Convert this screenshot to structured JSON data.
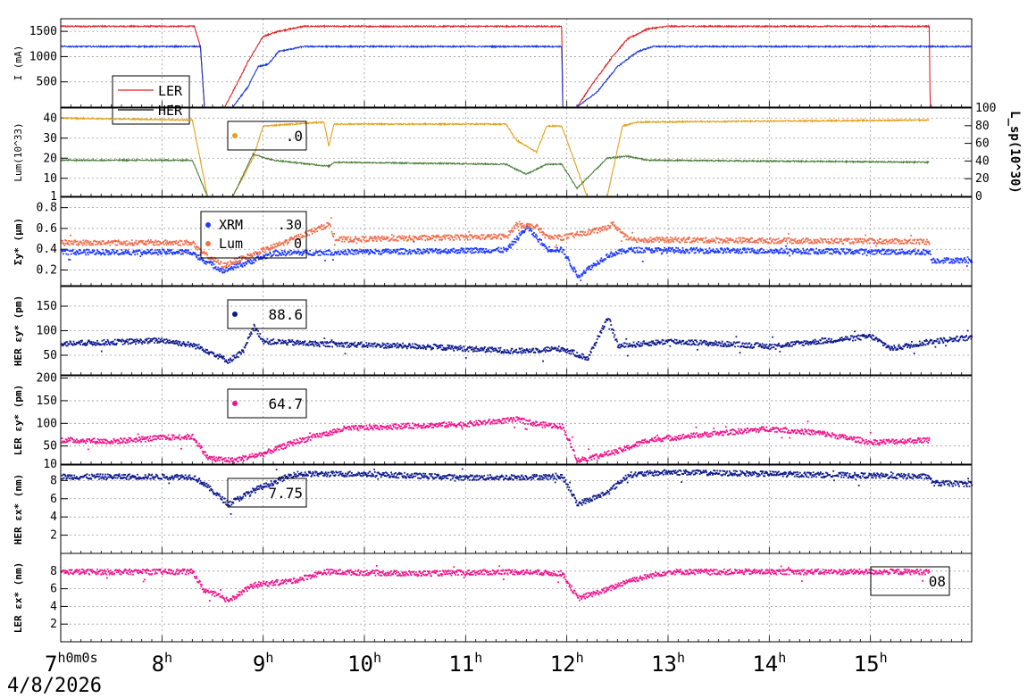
{
  "chart_data": {
    "type": "multi-panel time series",
    "date_label": "4/8/2026",
    "x_range_hours": [
      7.0,
      16.0
    ],
    "time_ticks": [
      {
        "hour": 7,
        "label": "7",
        "suffix": "h0m0s"
      },
      {
        "hour": 8,
        "label": "8",
        "suffix": "h"
      },
      {
        "hour": 9,
        "label": "9",
        "suffix": "h"
      },
      {
        "hour": 10,
        "label": "10",
        "suffix": "h"
      },
      {
        "hour": 11,
        "label": "11",
        "suffix": "h"
      },
      {
        "hour": 12,
        "label": "12",
        "suffix": "h"
      },
      {
        "hour": 13,
        "label": "13",
        "suffix": "h"
      },
      {
        "hour": 14,
        "label": "14",
        "suffix": "h"
      },
      {
        "hour": 15,
        "label": "15",
        "suffix": "h"
      }
    ],
    "colors": {
      "ler_current": "#dd2222",
      "her_current": "#1a36d8",
      "lum_gold": "#e3a21a",
      "lum_green": "#4c7e3a",
      "xrm_blue": "#1f3bff",
      "lum_salmon": "#f0704f",
      "navy": "#0e1a8c",
      "pink": "#f0168e"
    },
    "panels": [
      {
        "id": "current",
        "ylabel": "I (mA)",
        "ylim": [
          0,
          1750
        ],
        "yticks": [
          500,
          1000,
          1500
        ],
        "legend": [
          "LER",
          "HER"
        ],
        "series": [
          {
            "name": "LER",
            "style": "line",
            "color_key": "ler_current",
            "points": [
              [
                7.0,
                1600
              ],
              [
                8.32,
                1600
              ],
              [
                8.38,
                1200
              ],
              [
                8.42,
                0
              ],
              [
                8.62,
                0
              ],
              [
                8.75,
                500
              ],
              [
                8.85,
                900
              ],
              [
                9.0,
                1400
              ],
              [
                9.15,
                1500
              ],
              [
                9.4,
                1600
              ],
              [
                11.95,
                1600
              ],
              [
                11.96,
                0
              ],
              [
                12.1,
                0
              ],
              [
                12.25,
                450
              ],
              [
                12.45,
                1000
              ],
              [
                12.6,
                1350
              ],
              [
                12.8,
                1550
              ],
              [
                13.0,
                1600
              ],
              [
                15.58,
                1600
              ],
              [
                15.59,
                0
              ],
              [
                16.0,
                0
              ]
            ]
          },
          {
            "name": "HER",
            "style": "line",
            "color_key": "her_current",
            "points": [
              [
                7.0,
                1200
              ],
              [
                8.38,
                1200
              ],
              [
                8.42,
                0
              ],
              [
                8.7,
                0
              ],
              [
                8.85,
                400
              ],
              [
                8.95,
                800
              ],
              [
                9.05,
                850
              ],
              [
                9.15,
                1100
              ],
              [
                9.4,
                1200
              ],
              [
                11.95,
                1200
              ],
              [
                11.96,
                0
              ],
              [
                12.1,
                0
              ],
              [
                12.3,
                300
              ],
              [
                12.5,
                800
              ],
              [
                12.7,
                1100
              ],
              [
                12.85,
                1200
              ],
              [
                16.0,
                1200
              ]
            ]
          }
        ]
      },
      {
        "id": "luminosity",
        "ylabel": "Lum(10^33)",
        "ylim": [
          1,
          45
        ],
        "yticks": [
          1,
          10,
          20,
          30,
          40
        ],
        "right_axis": {
          "label": "L_sp(10^30)",
          "ylim": [
            0,
            100
          ],
          "ticks": [
            0,
            20,
            40,
            60,
            80,
            100
          ]
        },
        "legend_value": ".0",
        "series": [
          {
            "name": "gold",
            "style": "line",
            "color_key": "lum_gold",
            "points": [
              [
                7.0,
                40
              ],
              [
                8.3,
                39
              ],
              [
                8.45,
                1
              ],
              [
                8.7,
                1
              ],
              [
                8.9,
                20
              ],
              [
                9.0,
                36
              ],
              [
                9.3,
                37
              ],
              [
                9.6,
                38
              ],
              [
                9.65,
                26
              ],
              [
                9.7,
                37
              ],
              [
                11.4,
                37
              ],
              [
                11.5,
                29
              ],
              [
                11.7,
                23
              ],
              [
                11.8,
                36
              ],
              [
                11.95,
                36
              ],
              [
                12.2,
                1
              ],
              [
                12.4,
                1
              ],
              [
                12.55,
                36
              ],
              [
                12.7,
                38
              ],
              [
                15.58,
                39
              ]
            ]
          },
          {
            "name": "green",
            "style": "line",
            "color_key": "lum_green",
            "points": [
              [
                7.0,
                19
              ],
              [
                8.3,
                19
              ],
              [
                8.45,
                1
              ],
              [
                8.7,
                1
              ],
              [
                8.9,
                22
              ],
              [
                9.1,
                19
              ],
              [
                9.65,
                16
              ],
              [
                9.7,
                18
              ],
              [
                11.4,
                17
              ],
              [
                11.6,
                12
              ],
              [
                11.8,
                17
              ],
              [
                11.95,
                17
              ],
              [
                12.1,
                5
              ],
              [
                12.4,
                20
              ],
              [
                12.6,
                21
              ],
              [
                12.8,
                19
              ],
              [
                15.58,
                18
              ]
            ]
          }
        ]
      },
      {
        "id": "xrm_sigma",
        "ylabel": "Σy* (μm)",
        "ylim": [
          0.05,
          0.9
        ],
        "yticks": [
          0.2,
          0.4,
          0.6,
          0.8
        ],
        "legend": [
          "XRM",
          "Lum"
        ],
        "legend_values": [
          ".30",
          "0"
        ],
        "series": [
          {
            "name": "XRM",
            "style": "dots",
            "color_key": "xrm_blue",
            "points": [
              [
                7.0,
                0.38
              ],
              [
                8.3,
                0.38
              ],
              [
                8.35,
                0.33
              ],
              [
                8.6,
                0.2
              ],
              [
                8.9,
                0.3
              ],
              [
                9.1,
                0.37
              ],
              [
                11.4,
                0.4
              ],
              [
                11.6,
                0.62
              ],
              [
                11.8,
                0.41
              ],
              [
                11.95,
                0.4
              ],
              [
                12.1,
                0.15
              ],
              [
                12.4,
                0.35
              ],
              [
                12.6,
                0.4
              ],
              [
                15.58,
                0.38
              ],
              [
                15.6,
                0.3
              ],
              [
                16.0,
                0.3
              ]
            ]
          },
          {
            "name": "Lum",
            "style": "dots",
            "color_key": "lum_salmon",
            "points": [
              [
                7.0,
                0.47
              ],
              [
                8.3,
                0.47
              ],
              [
                8.35,
                0.4
              ],
              [
                8.6,
                0.25
              ],
              [
                8.9,
                0.36
              ],
              [
                9.2,
                0.47
              ],
              [
                9.65,
                0.65
              ],
              [
                9.7,
                0.5
              ],
              [
                11.4,
                0.53
              ],
              [
                11.5,
                0.65
              ],
              [
                11.7,
                0.62
              ],
              [
                11.8,
                0.52
              ],
              [
                11.95,
                0.52
              ],
              [
                12.35,
                0.6
              ],
              [
                12.45,
                0.65
              ],
              [
                12.6,
                0.5
              ],
              [
                15.58,
                0.48
              ]
            ]
          }
        ]
      },
      {
        "id": "her_epsy",
        "ylabel": "HER εy* (pm)",
        "ylim": [
          10,
          190
        ],
        "yticks": [
          50,
          100,
          150
        ],
        "legend_value": "88.6",
        "series": [
          {
            "name": "HER eps_y",
            "style": "dots",
            "color_key": "navy",
            "points": [
              [
                7.0,
                75
              ],
              [
                7.8,
                80
              ],
              [
                8.0,
                82
              ],
              [
                8.3,
                72
              ],
              [
                8.4,
                65
              ],
              [
                8.65,
                40
              ],
              [
                8.8,
                60
              ],
              [
                8.9,
                110
              ],
              [
                9.0,
                80
              ],
              [
                9.5,
                75
              ],
              [
                10.5,
                70
              ],
              [
                11.5,
                60
              ],
              [
                11.95,
                65
              ],
              [
                12.2,
                45
              ],
              [
                12.4,
                130
              ],
              [
                12.5,
                70
              ],
              [
                13.0,
                80
              ],
              [
                14.0,
                70
              ],
              [
                15.0,
                90
              ],
              [
                15.2,
                65
              ],
              [
                15.6,
                80
              ],
              [
                16.0,
                88
              ]
            ]
          }
        ]
      },
      {
        "id": "ler_epsy",
        "ylabel": "LER εy* (pm)",
        "ylim": [
          10,
          205
        ],
        "yticks": [
          10,
          50,
          100,
          150,
          200
        ],
        "legend_value": "64.7",
        "series": [
          {
            "name": "LER eps_y",
            "style": "dots",
            "color_key": "pink",
            "points": [
              [
                7.0,
                65
              ],
              [
                7.5,
                62
              ],
              [
                8.0,
                70
              ],
              [
                8.3,
                72
              ],
              [
                8.45,
                25
              ],
              [
                8.7,
                20
              ],
              [
                9.0,
                35
              ],
              [
                9.3,
                60
              ],
              [
                9.8,
                90
              ],
              [
                10.3,
                95
              ],
              [
                11.0,
                100
              ],
              [
                11.5,
                110
              ],
              [
                11.7,
                100
              ],
              [
                11.95,
                95
              ],
              [
                12.1,
                20
              ],
              [
                12.5,
                40
              ],
              [
                12.8,
                65
              ],
              [
                13.5,
                80
              ],
              [
                14.0,
                90
              ],
              [
                14.5,
                80
              ],
              [
                15.0,
                60
              ],
              [
                15.58,
                65
              ]
            ]
          }
        ]
      },
      {
        "id": "her_epsx",
        "ylabel": "HER εx* (nm)",
        "ylim": [
          0,
          9.7
        ],
        "yticks": [
          2,
          4,
          6,
          8
        ],
        "legend_value": "7.75",
        "series": [
          {
            "name": "HER eps_x",
            "style": "dots",
            "color_key": "navy",
            "points": [
              [
                7.0,
                8.5
              ],
              [
                8.3,
                8.5
              ],
              [
                8.4,
                7.8
              ],
              [
                8.65,
                5.5
              ],
              [
                8.9,
                7.0
              ],
              [
                9.3,
                8.8
              ],
              [
                10.0,
                8.8
              ],
              [
                11.0,
                8.4
              ],
              [
                11.95,
                8.5
              ],
              [
                12.1,
                5.5
              ],
              [
                12.4,
                6.8
              ],
              [
                12.6,
                8.7
              ],
              [
                13.0,
                9.0
              ],
              [
                15.58,
                8.5
              ],
              [
                15.6,
                7.8
              ],
              [
                16.0,
                7.7
              ]
            ]
          }
        ]
      },
      {
        "id": "ler_epsx",
        "ylabel": "LER εx* (nm)",
        "ylim": [
          0,
          10
        ],
        "yticks": [
          2,
          4,
          6,
          8
        ],
        "legend_value": "08",
        "series": [
          {
            "name": "LER eps_x",
            "style": "dots",
            "color_key": "pink",
            "points": [
              [
                7.0,
                8.0
              ],
              [
                8.3,
                8.0
              ],
              [
                8.4,
                6.0
              ],
              [
                8.65,
                4.8
              ],
              [
                8.9,
                6.5
              ],
              [
                9.3,
                7.0
              ],
              [
                9.6,
                8.0
              ],
              [
                10.5,
                7.8
              ],
              [
                11.5,
                8.0
              ],
              [
                11.95,
                7.8
              ],
              [
                12.1,
                5.0
              ],
              [
                12.4,
                6.0
              ],
              [
                12.6,
                7.0
              ],
              [
                13.0,
                8.0
              ],
              [
                15.58,
                8.0
              ]
            ]
          }
        ]
      }
    ]
  }
}
